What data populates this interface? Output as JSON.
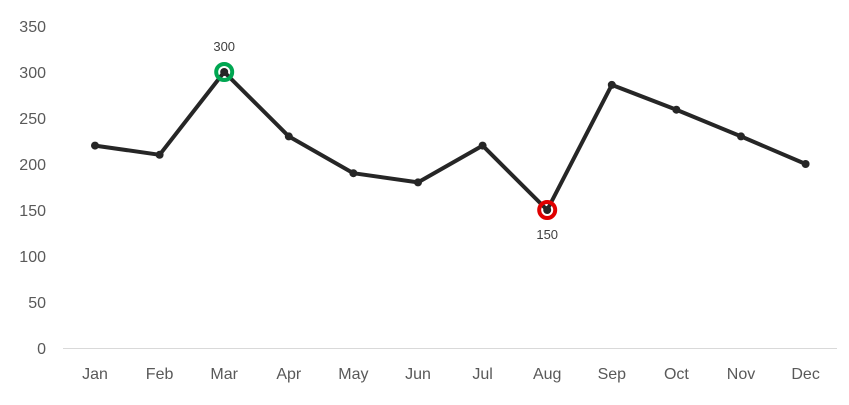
{
  "chart_data": {
    "type": "line",
    "title": "",
    "xlabel": "",
    "ylabel": "",
    "categories": [
      "Jan",
      "Feb",
      "Mar",
      "Apr",
      "May",
      "Jun",
      "Jul",
      "Aug",
      "Sep",
      "Oct",
      "Nov",
      "Dec"
    ],
    "series": [
      {
        "values": [
          220,
          210,
          300,
          230,
          190,
          180,
          220,
          150,
          286,
          259,
          230,
          200
        ],
        "color": "#262626"
      }
    ],
    "ylim": [
      0,
      350
    ],
    "yticks": [
      0,
      50,
      100,
      150,
      200,
      250,
      300,
      350
    ],
    "grid": false,
    "legend": "none",
    "highlights": [
      {
        "category": "Mar",
        "value": 300,
        "label": "300",
        "color": "#00a651",
        "kind": "max"
      },
      {
        "category": "Aug",
        "value": 150,
        "label": "150",
        "color": "#e00000",
        "kind": "min"
      }
    ]
  }
}
